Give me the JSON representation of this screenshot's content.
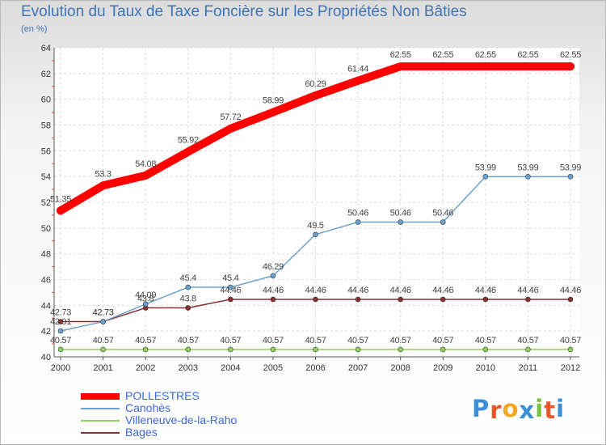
{
  "title": "Evolution du Taux de Taxe Foncière sur les Propriétés Non Bâties",
  "subtitle": "(en %)",
  "logo": {
    "letters": [
      "P",
      "r",
      "o",
      "x",
      "i",
      "t",
      "i"
    ],
    "colors": [
      "#3a8fd8",
      "#e8552a",
      "#f2a623",
      "#3a8fd8",
      "#7bbf3a",
      "#e8552a",
      "#3a8fd8"
    ]
  },
  "chart_data": {
    "type": "line",
    "title": "Evolution du Taux de Taxe Foncière sur les Propriétés Non Bâties",
    "ylabel": "(en %)",
    "xlabel": "",
    "x": [
      "2000",
      "2001",
      "2002",
      "2003",
      "2004",
      "2005",
      "2006",
      "2007",
      "2008",
      "2009",
      "2010",
      "2011",
      "2012"
    ],
    "ylim": [
      40,
      64
    ],
    "yticks": [
      40,
      42,
      44,
      46,
      48,
      50,
      52,
      54,
      56,
      58,
      60,
      62,
      64
    ],
    "grid": true,
    "legend": "bottom-left",
    "series": [
      {
        "name": "POLLESTRES",
        "color": "#ff0000",
        "values": [
          51.35,
          53.3,
          54.08,
          55.92,
          57.72,
          58.99,
          60.29,
          61.44,
          62.55,
          62.55,
          62.55,
          62.55,
          62.55
        ],
        "labels": [
          "51.35",
          "53.3",
          "54.08",
          "55.92",
          "57.72",
          "58.99",
          "60.29",
          "61.44",
          "62.55",
          "62.55",
          "62.55",
          "62.55",
          "62.55"
        ]
      },
      {
        "name": "Canohès",
        "color": "#6aa2cf",
        "values": [
          42.01,
          42.73,
          44.09,
          45.4,
          45.4,
          46.29,
          49.5,
          50.46,
          50.46,
          50.46,
          53.99,
          53.99,
          53.99
        ],
        "labels": [
          "42.01",
          "42.73",
          "44.09",
          "45.4",
          "45.4",
          "46.29",
          "49.5",
          "50.46",
          "50.46",
          "50.46",
          "53.99",
          "53.99",
          "53.99"
        ]
      },
      {
        "name": "Villeneuve-de-la-Raho",
        "color": "#8cd45a",
        "values": [
          40.57,
          40.57,
          40.57,
          40.57,
          40.57,
          40.57,
          40.57,
          40.57,
          40.57,
          40.57,
          40.57,
          40.57,
          40.57
        ],
        "labels": [
          "40.57",
          "40.57",
          "40.57",
          "40.57",
          "40.57",
          "40.57",
          "40.57",
          "40.57",
          "40.57",
          "40.57",
          "40.57",
          "40.57",
          "40.57"
        ]
      },
      {
        "name": "Bages",
        "color": "#8a3030",
        "values": [
          42.73,
          42.73,
          43.8,
          43.8,
          44.46,
          44.46,
          44.46,
          44.46,
          44.46,
          44.46,
          44.46,
          44.46,
          44.46
        ],
        "labels": [
          "42.73",
          "42.73",
          "43.8",
          "43.8",
          "44.46",
          "44.46",
          "44.46",
          "44.46",
          "44.46",
          "44.46",
          "44.46",
          "44.46",
          "44.46"
        ]
      }
    ]
  }
}
